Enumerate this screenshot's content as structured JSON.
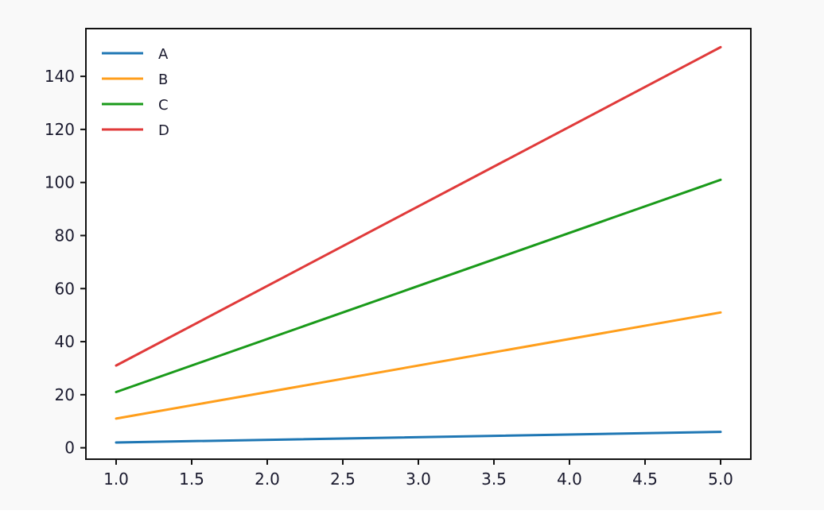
{
  "chart_data": {
    "type": "line",
    "title": "",
    "xlabel": "",
    "ylabel": "",
    "x": [
      1.0,
      5.0
    ],
    "xlim": [
      0.8,
      5.2
    ],
    "ylim": [
      -4.3,
      158
    ],
    "xticks": [
      1.0,
      1.5,
      2.0,
      2.5,
      3.0,
      3.5,
      4.0,
      4.5,
      5.0
    ],
    "xtick_labels": [
      "1.0",
      "1.5",
      "2.0",
      "2.5",
      "3.0",
      "3.5",
      "4.0",
      "4.5",
      "5.0"
    ],
    "yticks": [
      0,
      20,
      40,
      60,
      80,
      100,
      120,
      140
    ],
    "ytick_labels": [
      "0",
      "20",
      "40",
      "60",
      "80",
      "100",
      "120",
      "140"
    ],
    "grid": false,
    "legend_position": "top-left",
    "series": [
      {
        "name": "A",
        "color": "#1f77b4",
        "values": [
          2,
          6
        ]
      },
      {
        "name": "B",
        "color": "#ff9e1b",
        "values": [
          11,
          51
        ]
      },
      {
        "name": "C",
        "color": "#1a9a1a",
        "values": [
          21,
          101
        ]
      },
      {
        "name": "D",
        "color": "#e03a3a",
        "values": [
          31,
          151
        ]
      }
    ]
  }
}
